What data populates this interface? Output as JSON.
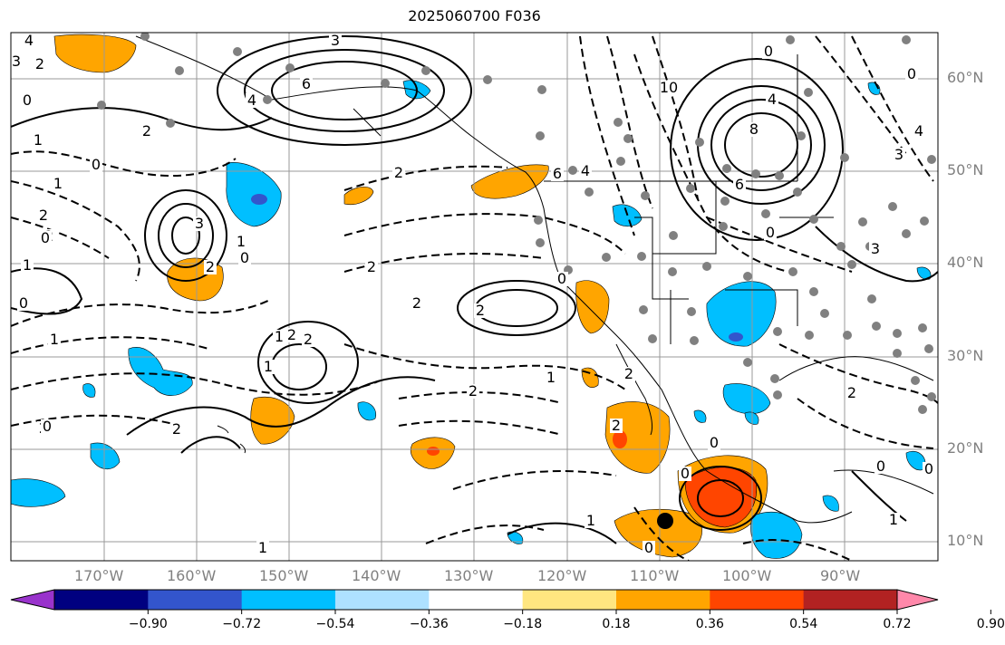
{
  "title": "2025060700 F036",
  "lat_labels": [
    "60°N",
    "50°N",
    "40°N",
    "30°N",
    "20°N",
    "10°N"
  ],
  "lon_labels": [
    "170°W",
    "160°W",
    "150°W",
    "140°W",
    "130°W",
    "120°W",
    "110°W",
    "100°W",
    "90°W"
  ],
  "colorbar": {
    "colors": [
      "#9933cc",
      "#000080",
      "#3355cc",
      "#00bfff",
      "#aee1ff",
      "#ffffff",
      "#ffe680",
      "#ffa500",
      "#ff4500",
      "#b22222",
      "#ff88aa"
    ],
    "tick_labels": [
      "−0.90",
      "−0.72",
      "−0.54",
      "−0.36",
      "−0.18",
      "0.18",
      "0.36",
      "0.54",
      "0.72",
      "0.90"
    ]
  },
  "contour_labels": [
    {
      "text": "4"
    },
    {
      "text": "3"
    },
    {
      "text": "2"
    },
    {
      "text": "0"
    },
    {
      "text": "1"
    },
    {
      "text": "2"
    },
    {
      "text": "1"
    },
    {
      "text": "2"
    },
    {
      "text": "0"
    },
    {
      "text": "3"
    },
    {
      "text": "2"
    },
    {
      "text": "1"
    },
    {
      "text": "0"
    },
    {
      "text": "1"
    },
    {
      "text": "0"
    },
    {
      "text": "6"
    },
    {
      "text": "3"
    },
    {
      "text": "2"
    },
    {
      "text": "4"
    },
    {
      "text": "2"
    },
    {
      "text": "2"
    },
    {
      "text": "0"
    },
    {
      "text": "2"
    },
    {
      "text": "2"
    },
    {
      "text": "1"
    },
    {
      "text": "2"
    },
    {
      "text": "1"
    },
    {
      "text": "2"
    },
    {
      "text": "0"
    },
    {
      "text": "2"
    },
    {
      "text": "6"
    },
    {
      "text": "4"
    },
    {
      "text": "2"
    },
    {
      "text": "0"
    },
    {
      "text": "1"
    },
    {
      "text": "10"
    },
    {
      "text": "4"
    },
    {
      "text": "8"
    },
    {
      "text": "6"
    },
    {
      "text": "0"
    },
    {
      "text": "2"
    },
    {
      "text": "3"
    },
    {
      "text": "1"
    },
    {
      "text": "2"
    },
    {
      "text": "2"
    },
    {
      "text": "2"
    },
    {
      "text": "0"
    },
    {
      "text": "1"
    },
    {
      "text": "0"
    },
    {
      "text": "1"
    },
    {
      "text": "0"
    },
    {
      "text": "1"
    },
    {
      "text": "0"
    },
    {
      "text": "4"
    },
    {
      "text": "3"
    },
    {
      "text": "0"
    },
    {
      "text": "0"
    },
    {
      "text": "0"
    }
  ]
}
